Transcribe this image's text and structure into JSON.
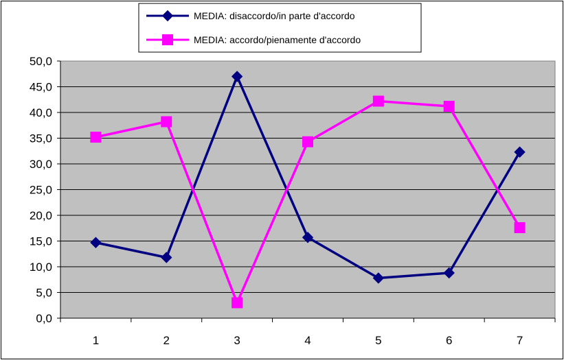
{
  "chart_data": {
    "type": "line",
    "categories": [
      "1",
      "2",
      "3",
      "4",
      "5",
      "6",
      "7"
    ],
    "series": [
      {
        "name": "MEDIA: disaccordo/in parte d'accordo",
        "values": [
          14.7,
          11.8,
          47.0,
          15.7,
          7.8,
          8.8,
          32.3
        ],
        "color": "#000080",
        "marker": "diamond"
      },
      {
        "name": "MEDIA: accordo/pienamente d'accordo",
        "values": [
          35.2,
          38.2,
          3.0,
          34.3,
          42.2,
          41.2,
          17.6
        ],
        "color": "#FF00FF",
        "marker": "square"
      }
    ],
    "y_ticks": [
      "0,0",
      "5,0",
      "10,0",
      "15,0",
      "20,0",
      "25,0",
      "30,0",
      "35,0",
      "40,0",
      "45,0",
      "50,0"
    ],
    "ylim": [
      0,
      50
    ],
    "grid": true,
    "plot_background": "#C0C0C0",
    "legend_position": "top-center"
  }
}
